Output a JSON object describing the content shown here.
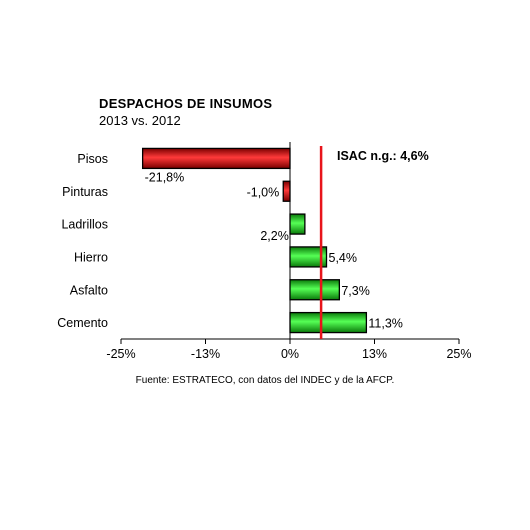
{
  "chart_data": {
    "type": "bar",
    "orientation": "horizontal",
    "title": "DESPACHOS DE INSUMOS",
    "subtitle": "2013 vs. 2012",
    "categories": [
      "Pisos",
      "Pinturas",
      "Ladrillos",
      "Hierro",
      "Asfalto",
      "Cemento"
    ],
    "values": [
      -21.8,
      -1.0,
      2.2,
      5.4,
      7.3,
      11.3
    ],
    "value_labels": [
      "-21,8%",
      "-1,0%",
      "2,2%",
      "5,4%",
      "7,3%",
      "11,3%"
    ],
    "xlim": [
      -25,
      25
    ],
    "x_ticks": [
      -25,
      -12.5,
      0,
      12.5,
      25
    ],
    "x_tick_labels": [
      "-25%",
      "-13%",
      "0%",
      "13%",
      "25%"
    ],
    "reference_line": {
      "value": 4.6,
      "label": "ISAC n.g.: 4,6%",
      "color": "#e8141b"
    },
    "colors": {
      "negative": "#d81e1e",
      "positive": "#2ed62e"
    },
    "grid": false,
    "source": "Fuente: ESTRATECO, con datos del INDEC y de la AFCP."
  }
}
